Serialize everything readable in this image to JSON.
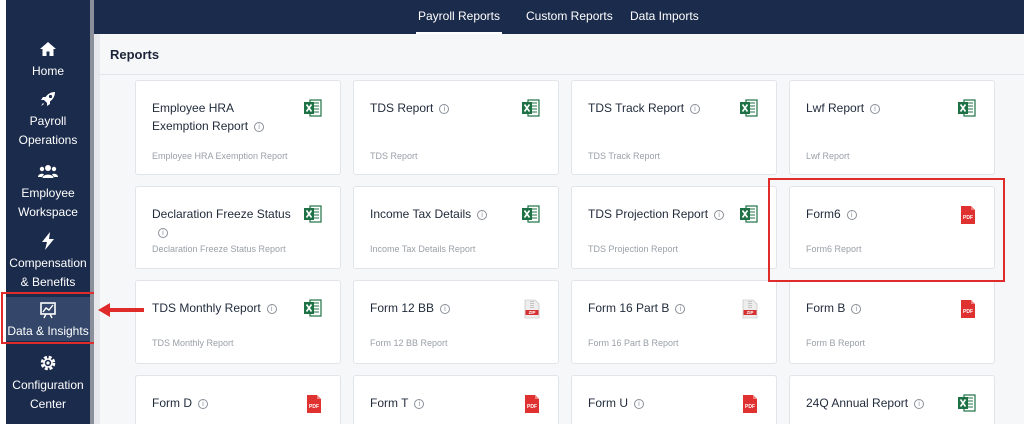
{
  "sidebar": {
    "items": [
      {
        "label": "Home",
        "icon": "home-icon"
      },
      {
        "label": "Payroll Operations",
        "icon": "rocket-icon"
      },
      {
        "label": "Employee Workspace",
        "icon": "users-icon"
      },
      {
        "label": "Compensation & Benefits",
        "icon": "bolt-icon"
      },
      {
        "label": "Data & Insights",
        "icon": "chart-board-icon",
        "active": true
      },
      {
        "label": "Configuration Center",
        "icon": "gear-icon"
      }
    ]
  },
  "topbar": {
    "tabs": [
      {
        "label": "Payroll Reports",
        "active": true
      },
      {
        "label": "Custom Reports"
      },
      {
        "label": "Data Imports"
      }
    ]
  },
  "main": {
    "title": "Reports",
    "cards": [
      {
        "title": "Employee HRA Exemption Report",
        "subtitle": "Employee HRA Exemption Report",
        "type": "excel"
      },
      {
        "title": "TDS Report",
        "subtitle": "TDS Report",
        "type": "excel"
      },
      {
        "title": "TDS Track Report",
        "subtitle": "TDS Track Report",
        "type": "excel"
      },
      {
        "title": "Lwf Report",
        "subtitle": "Lwf Report",
        "type": "excel"
      },
      {
        "title": "Declaration Freeze Status",
        "subtitle": "Declaration Freeze Status Report",
        "type": "excel"
      },
      {
        "title": "Income Tax Details",
        "subtitle": "Income Tax Details Report",
        "type": "excel"
      },
      {
        "title": "TDS Projection Report",
        "subtitle": "TDS Projection Report",
        "type": "excel"
      },
      {
        "title": "Form6",
        "subtitle": "Form6 Report",
        "type": "pdf",
        "highlighted": true
      },
      {
        "title": "TDS Monthly Report",
        "subtitle": "TDS Monthly Report",
        "type": "excel"
      },
      {
        "title": "Form 12 BB",
        "subtitle": "Form 12 BB Report",
        "type": "zip"
      },
      {
        "title": "Form 16 Part B",
        "subtitle": "Form 16 Part B Report",
        "type": "zip"
      },
      {
        "title": "Form B",
        "subtitle": "Form B Report",
        "type": "pdf"
      },
      {
        "title": "Form D",
        "subtitle": "",
        "type": "pdf"
      },
      {
        "title": "Form T",
        "subtitle": "",
        "type": "pdf"
      },
      {
        "title": "Form U",
        "subtitle": "",
        "type": "pdf"
      },
      {
        "title": "24Q Annual Report",
        "subtitle": "",
        "type": "excel"
      }
    ],
    "icon_labels": {
      "pdf": "PDF",
      "zip": "ZIP"
    }
  },
  "colors": {
    "sidebar_bg": "#1b2b4b",
    "highlight": "#e02b2b",
    "excel": "#1e7145",
    "pdf": "#e03131"
  }
}
